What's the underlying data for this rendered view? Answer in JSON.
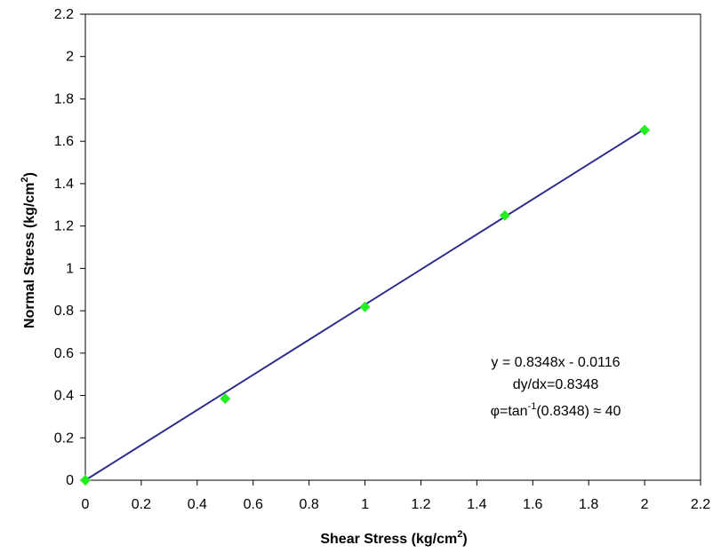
{
  "chart_data": {
    "type": "scatter",
    "title": "",
    "xlabel": "Shear Stress (kg/cm",
    "xlabel_sup": "2",
    "xlabel_end": ")",
    "ylabel": "Normal Stress (kg/cm",
    "ylabel_sup": "2",
    "ylabel_end": ")",
    "xlim": [
      0,
      2.2
    ],
    "ylim": [
      0,
      2.2
    ],
    "xticks": [
      "0",
      "0.2",
      "0.4",
      "0.6",
      "0.8",
      "1",
      "1.2",
      "1.4",
      "1.6",
      "1.8",
      "2",
      "2.2"
    ],
    "yticks": [
      "0",
      "0.2",
      "0.4",
      "0.6",
      "0.8",
      "1",
      "1.2",
      "1.4",
      "1.6",
      "1.8",
      "2",
      "2.2"
    ],
    "grid": false,
    "legend": "none",
    "series": [
      {
        "x": [
          0,
          0.5,
          1,
          1.5,
          2
        ],
        "y": [
          0,
          0.385,
          0.818,
          1.25,
          1.653
        ],
        "marker": "diamond",
        "color": "#22ee22"
      }
    ],
    "trendline": {
      "x": [
        0,
        2
      ],
      "y": [
        0,
        1.658
      ],
      "color": "#2b2b8c"
    },
    "annotation": {
      "line1": "y = 0.8348x - 0.0116",
      "line2": "dy/dx=0.8348",
      "line3_pre": "φ=tan",
      "line3_sup": "-1",
      "line3_post": "(0.8348) ≈ 40"
    }
  }
}
